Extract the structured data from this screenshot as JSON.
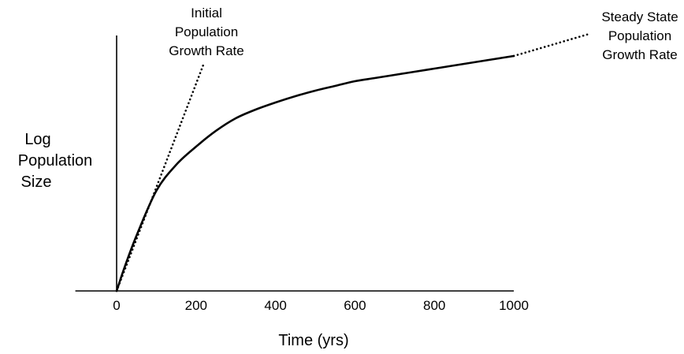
{
  "chart_data": {
    "type": "line",
    "xlabel": "Time (yrs)",
    "ylabel": [
      "Log",
      "Population",
      "Size"
    ],
    "xlim": [
      -100,
      1000
    ],
    "xticks": [
      0,
      200,
      400,
      600,
      800,
      1000
    ],
    "ylim": [
      0,
      1
    ],
    "y_tick_labels": false,
    "grid": false,
    "series": [
      {
        "style": "solid",
        "x": [
          0,
          20,
          50,
          100,
          150,
          200,
          250,
          300,
          350,
          400,
          450,
          500,
          550,
          600,
          650,
          700,
          750,
          800,
          850,
          900,
          950,
          1000
        ],
        "y": [
          0.0,
          0.0882,
          0.2059,
          0.3735,
          0.4706,
          0.5382,
          0.5971,
          0.6441,
          0.6765,
          0.7029,
          0.7265,
          0.7471,
          0.7647,
          0.7824,
          0.7941,
          0.8059,
          0.8176,
          0.8294,
          0.8412,
          0.8529,
          0.8647,
          0.8765
        ]
      },
      {
        "style": "dotted",
        "x": [
          0,
          220
        ],
        "y": [
          0.0,
          0.85
        ]
      },
      {
        "style": "dotted",
        "x": [
          1000,
          1190
        ],
        "y": [
          0.8765,
          0.9588
        ]
      }
    ],
    "annotations": [
      {
        "lines": [
          "Initial",
          "Population",
          "Growth Rate"
        ]
      },
      {
        "lines": [
          "Steady State",
          "Population",
          "Growth Rate"
        ]
      }
    ]
  }
}
